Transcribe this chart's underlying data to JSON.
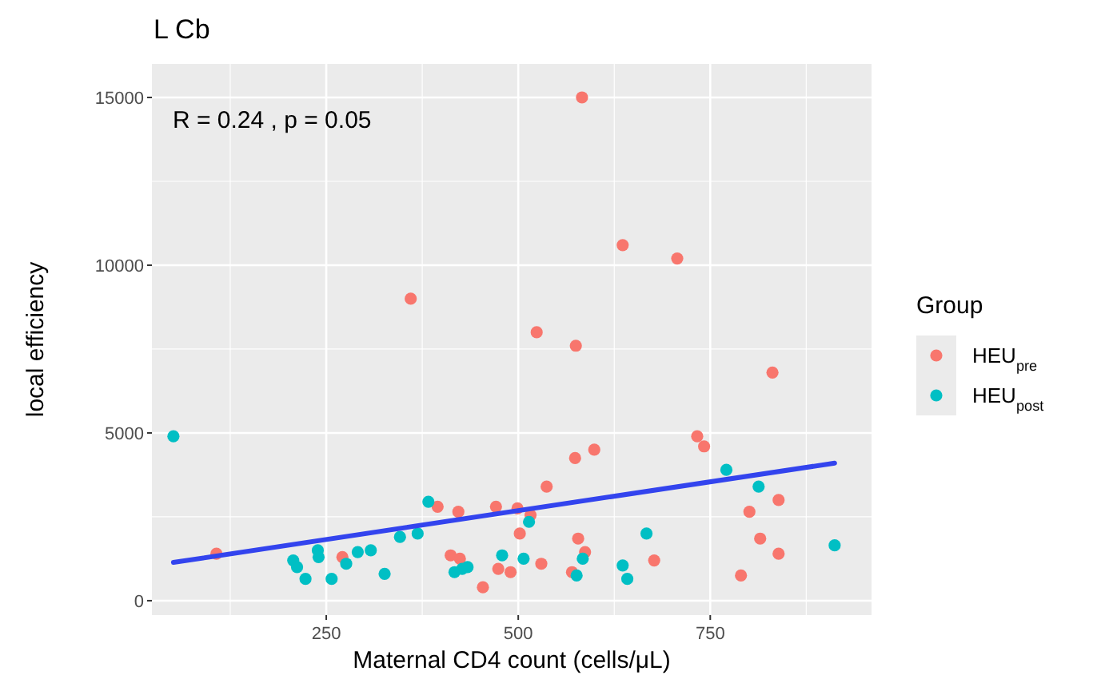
{
  "chart_data": {
    "type": "scatter",
    "title": "L Cb",
    "xlabel": "Maternal CD4 count (cells/μL)",
    "ylabel": "local efficiency",
    "legend_title": "Group",
    "annotations": [
      "R = 0.24 ,  p = 0.05"
    ],
    "xlim": [
      23,
      960
    ],
    "xticks": [
      250,
      500,
      750
    ],
    "ylim": [
      -430,
      16000
    ],
    "yticks": [
      0,
      5000,
      10000,
      15000
    ],
    "grid": true,
    "legend": "right",
    "series": [
      {
        "name": "HEU$_{pre}$",
        "color": "#f8766d",
        "marker": "circle",
        "x": [
          360,
          583,
          636,
          707,
          524,
          575,
          831,
          733,
          742,
          574,
          599,
          537,
          839,
          801,
          499,
          471,
          516,
          502,
          578,
          815,
          587,
          839,
          530,
          677,
          474,
          490,
          570,
          790,
          107,
          395,
          422,
          271,
          412,
          424,
          454
        ],
        "values": [
          9000,
          15000,
          10600,
          10200,
          8000,
          7600,
          6800,
          4900,
          4600,
          4250,
          4500,
          3400,
          3000,
          2650,
          2750,
          2800,
          2550,
          2000,
          1850,
          1850,
          1450,
          1400,
          1100,
          1200,
          950,
          850,
          850,
          750,
          1400,
          2800,
          2650,
          1300,
          1350,
          1250,
          400
        ]
      },
      {
        "name": "HEU$_{post}$",
        "color": "#00bfc4",
        "marker": "circle",
        "x": [
          51,
          383,
          346,
          369,
          207,
          212,
          223,
          239,
          240,
          257,
          276,
          291,
          308,
          326,
          417,
          427,
          434,
          479,
          514,
          507,
          584,
          576,
          636,
          642,
          667,
          771,
          813,
          912
        ],
        "values": [
          4900,
          2950,
          1900,
          2000,
          1200,
          1000,
          650,
          1500,
          1300,
          650,
          1100,
          1450,
          1500,
          800,
          850,
          950,
          1000,
          1350,
          2350,
          1250,
          1250,
          750,
          1050,
          650,
          2000,
          3900,
          3400,
          1650
        ]
      },
      {
        "type": "line",
        "color": "#3344ee",
        "marker": "none",
        "x": [
          51,
          912
        ],
        "values": [
          1140,
          4100
        ]
      }
    ]
  }
}
